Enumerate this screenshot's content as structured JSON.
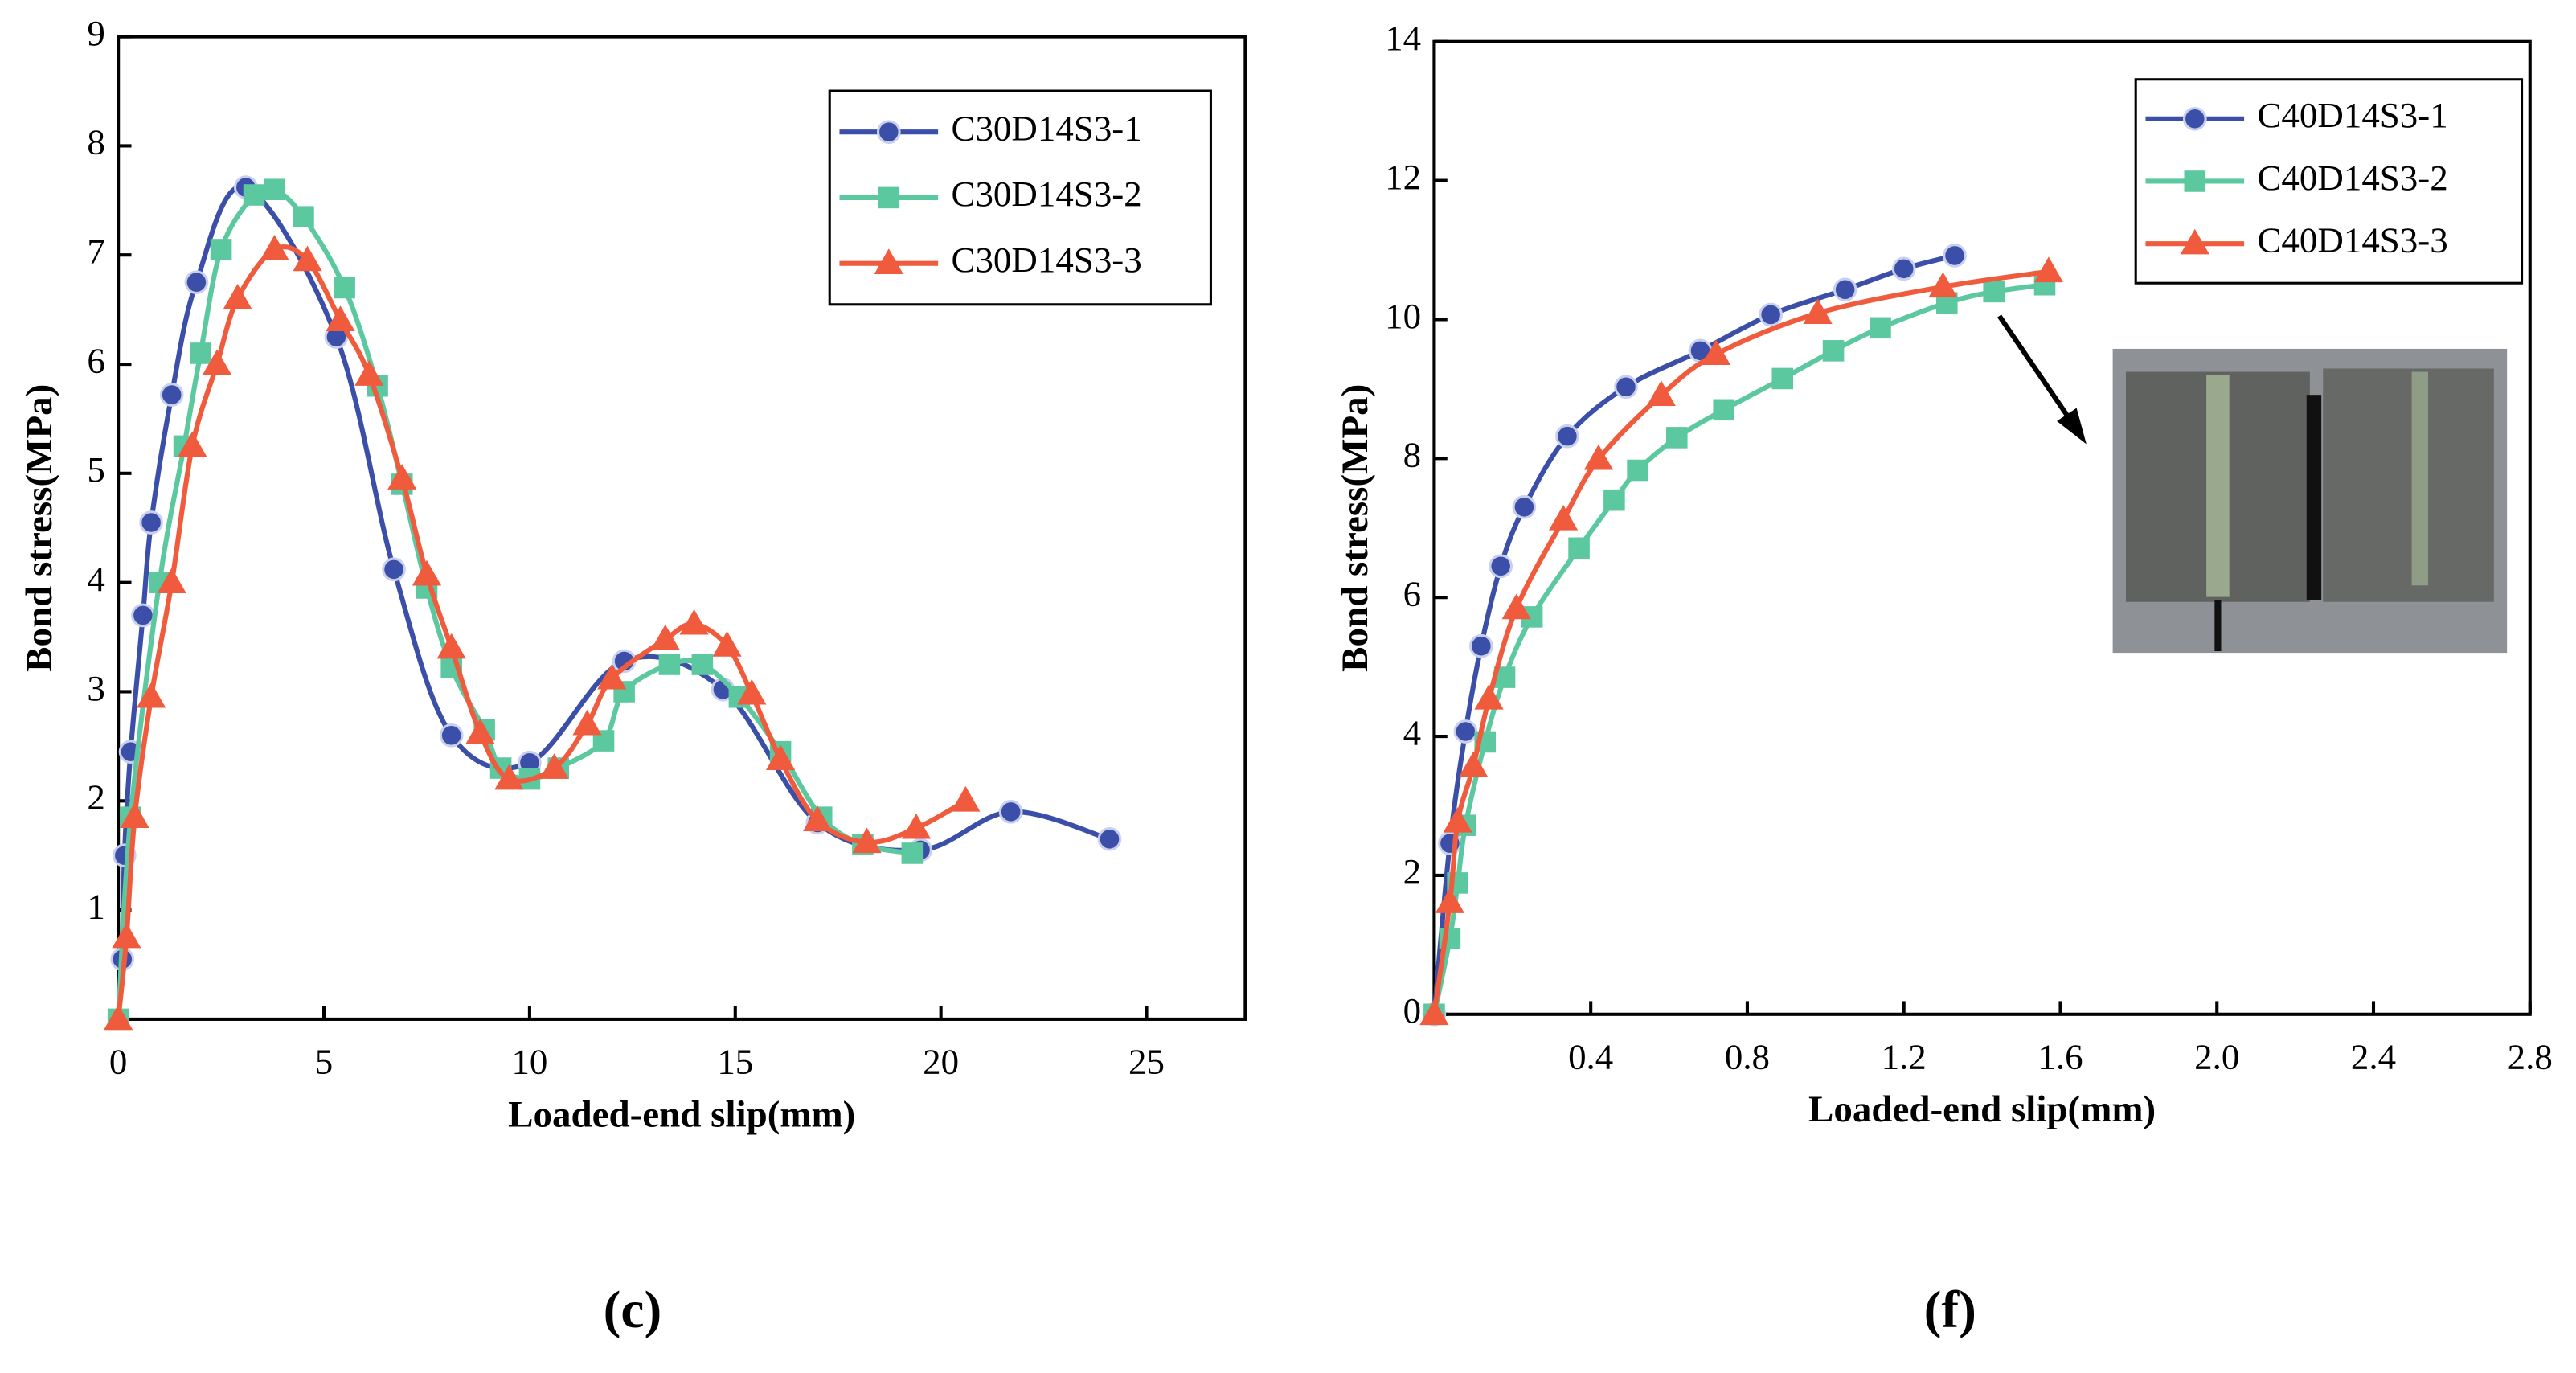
{
  "chart_data": [
    {
      "type": "line",
      "caption": "(c)",
      "xlabel": "Loaded-end slip(mm)",
      "ylabel": "Bond stress(MPa)",
      "xlim": [
        0,
        27.4
      ],
      "ylim": [
        0,
        9
      ],
      "xticks": [
        0,
        5,
        10,
        15,
        20,
        25
      ],
      "yticks": [
        1,
        2,
        3,
        4,
        5,
        6,
        7,
        8,
        9
      ],
      "legend": "upper right",
      "series": [
        {
          "name": "C30D14S3-1",
          "color": "#3b4fa8",
          "marker": "circle",
          "x": [
            0.1,
            0.15,
            0.3,
            0.6,
            0.8,
            1.3,
            1.9,
            3.1,
            5.3,
            6.7,
            8.1,
            10,
            12.3,
            14.7,
            17,
            19.5,
            21.7,
            24.1
          ],
          "values": [
            0.55,
            1.5,
            2.45,
            3.7,
            4.55,
            5.72,
            6.75,
            7.62,
            6.25,
            4.12,
            2.6,
            2.35,
            3.28,
            3.02,
            1.8,
            1.55,
            1.9,
            1.65
          ]
        },
        {
          "name": "C30D14S3-2",
          "color": "#5cc8a0",
          "marker": "square",
          "x": [
            0,
            0.3,
            1,
            1.6,
            2,
            2.5,
            3.3,
            3.8,
            4.5,
            5.5,
            6.3,
            6.9,
            7.5,
            8.1,
            8.9,
            9.3,
            10,
            10.7,
            11.8,
            12.3,
            13.4,
            14.2,
            15.1,
            16.1,
            17.1,
            18.1,
            19.3
          ],
          "values": [
            0,
            1.85,
            4,
            5.25,
            6.1,
            7.05,
            7.55,
            7.6,
            7.35,
            6.7,
            5.8,
            4.9,
            3.95,
            3.22,
            2.65,
            2.3,
            2.2,
            2.3,
            2.55,
            3,
            3.25,
            3.25,
            2.95,
            2.45,
            1.85,
            1.6,
            1.52
          ]
        },
        {
          "name": "C30D14S3-3",
          "color": "#ef5b3c",
          "marker": "triangle",
          "x": [
            0,
            0.2,
            0.4,
            0.8,
            1.3,
            1.8,
            2.4,
            2.9,
            3.8,
            4.6,
            5.4,
            6.1,
            6.9,
            7.5,
            8.1,
            8.8,
            9.5,
            10.6,
            11.4,
            12,
            13.3,
            14,
            14.8,
            15.4,
            16.1,
            17,
            18.2,
            19.4,
            20.6
          ],
          "values": [
            0,
            0.75,
            1.85,
            2.95,
            4,
            5.25,
            6,
            6.6,
            7.05,
            6.95,
            6.4,
            5.9,
            4.95,
            4.07,
            3.4,
            2.62,
            2.2,
            2.3,
            2.7,
            3.12,
            3.48,
            3.62,
            3.42,
            2.98,
            2.38,
            1.82,
            1.62,
            1.75,
            2.0
          ]
        }
      ]
    },
    {
      "type": "line",
      "caption": "(f)",
      "xlabel": "Loaded-end slip(mm)",
      "ylabel": "Bond stress(MPa)",
      "xlim": [
        0,
        2.8
      ],
      "ylim": [
        0,
        14
      ],
      "xticks": [
        0.4,
        0.8,
        1.2,
        1.6,
        {
          "value": 2,
          "label": "2.0"
        },
        2.4,
        2.8
      ],
      "yticks": [
        0,
        2,
        4,
        6,
        8,
        10,
        12,
        14
      ],
      "legend": "upper right",
      "series": [
        {
          "name": "C40D14S3-1",
          "color": "#3b4fa8",
          "marker": "circle",
          "x": [
            0,
            0.04,
            0.08,
            0.12,
            0.17,
            0.23,
            0.34,
            0.49,
            0.68,
            0.86,
            1.05,
            1.2,
            1.33
          ],
          "values": [
            0,
            2.46,
            4.07,
            5.3,
            6.45,
            7.3,
            8.32,
            9.03,
            9.55,
            10.07,
            10.43,
            10.73,
            10.92
          ]
        },
        {
          "name": "C40D14S3-2",
          "color": "#5cc8a0",
          "marker": "square",
          "x": [
            0,
            0.04,
            0.06,
            0.08,
            0.13,
            0.18,
            0.25,
            0.37,
            0.46,
            0.52,
            0.62,
            0.74,
            0.89,
            1.02,
            1.14,
            1.31,
            1.43,
            1.56
          ],
          "values": [
            0,
            1.09,
            1.89,
            2.72,
            3.92,
            4.85,
            5.72,
            6.71,
            7.4,
            7.83,
            8.3,
            8.7,
            9.15,
            9.55,
            9.88,
            10.24,
            10.4,
            10.5
          ]
        },
        {
          "name": "C40D14S3-3",
          "color": "#ef5b3c",
          "marker": "triangle",
          "x": [
            0,
            0.04,
            0.06,
            0.1,
            0.14,
            0.21,
            0.33,
            0.42,
            0.58,
            0.72,
            0.98,
            1.3,
            1.57
          ],
          "values": [
            0,
            1.61,
            2.77,
            3.57,
            4.54,
            5.84,
            7.12,
            7.99,
            8.91,
            9.5,
            10.09,
            10.47,
            10.69
          ]
        }
      ]
    }
  ]
}
